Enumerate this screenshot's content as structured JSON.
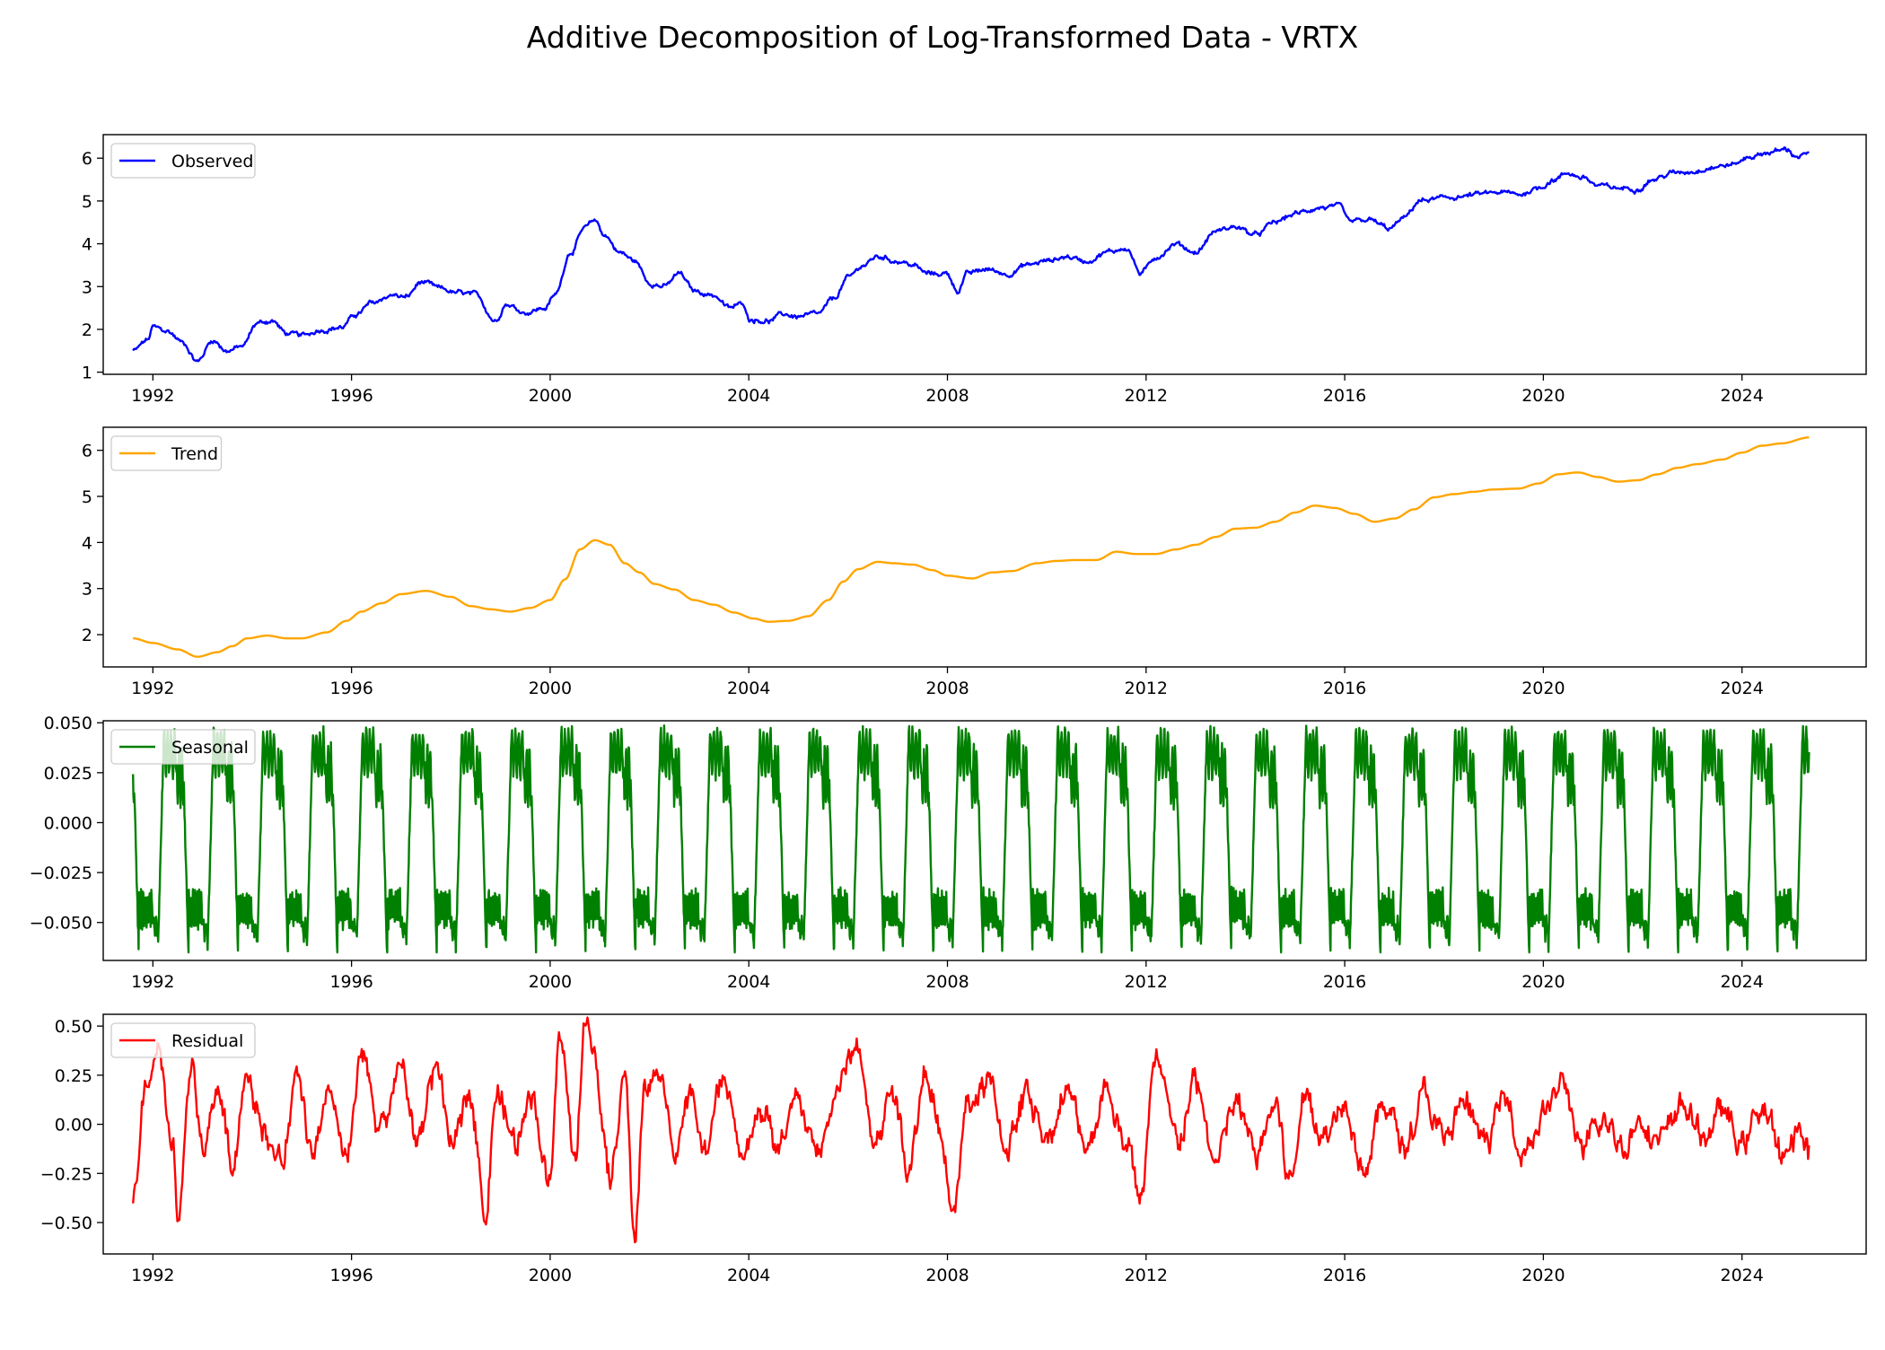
{
  "title": "Additive Decomposition of Log-Transformed Data - VRTX",
  "chart_data": [
    {
      "type": "line",
      "series": [
        {
          "name": "Observed",
          "color": "#0000ff"
        }
      ],
      "legend": "upper left",
      "xlim": [
        "1991-01",
        "2026-06"
      ],
      "ylim": [
        0.95,
        6.55
      ],
      "xticks": [
        "1992",
        "1996",
        "2000",
        "2004",
        "2008",
        "2012",
        "2016",
        "2020",
        "2024"
      ],
      "yticks": [
        "1",
        "2",
        "3",
        "4",
        "5",
        "6"
      ],
      "ytick_values": [
        1,
        2,
        3,
        4,
        5,
        6
      ],
      "anchors": [
        [
          1991.6,
          1.5
        ],
        [
          1991.9,
          1.75
        ],
        [
          1992.0,
          2.05
        ],
        [
          1992.3,
          1.95
        ],
        [
          1992.6,
          1.7
        ],
        [
          1992.9,
          1.25
        ],
        [
          1993.2,
          1.75
        ],
        [
          1993.5,
          1.5
        ],
        [
          1993.8,
          1.6
        ],
        [
          1994.1,
          2.15
        ],
        [
          1994.4,
          2.2
        ],
        [
          1994.7,
          1.9
        ],
        [
          1995.0,
          1.85
        ],
        [
          1995.4,
          2.0
        ],
        [
          1995.8,
          2.05
        ],
        [
          1996.1,
          2.35
        ],
        [
          1996.4,
          2.6
        ],
        [
          1996.8,
          2.8
        ],
        [
          1997.1,
          2.75
        ],
        [
          1997.4,
          3.1
        ],
        [
          1997.8,
          2.95
        ],
        [
          1998.1,
          2.85
        ],
        [
          1998.5,
          2.8
        ],
        [
          1998.9,
          2.2
        ],
        [
          1999.1,
          2.6
        ],
        [
          1999.5,
          2.4
        ],
        [
          1999.9,
          2.5
        ],
        [
          2000.1,
          2.8
        ],
        [
          2000.4,
          3.8
        ],
        [
          2000.7,
          4.35
        ],
        [
          2000.9,
          4.55
        ],
        [
          2001.1,
          4.2
        ],
        [
          2001.4,
          3.8
        ],
        [
          2001.7,
          3.6
        ],
        [
          2002.0,
          3.1
        ],
        [
          2002.3,
          3.0
        ],
        [
          2002.6,
          3.3
        ],
        [
          2002.9,
          2.9
        ],
        [
          2003.3,
          2.8
        ],
        [
          2003.6,
          2.5
        ],
        [
          2003.9,
          2.6
        ],
        [
          2004.0,
          2.25
        ],
        [
          2004.4,
          2.2
        ],
        [
          2004.7,
          2.35
        ],
        [
          2005.0,
          2.3
        ],
        [
          2005.4,
          2.35
        ],
        [
          2005.7,
          2.7
        ],
        [
          2006.0,
          3.2
        ],
        [
          2006.3,
          3.5
        ],
        [
          2006.6,
          3.7
        ],
        [
          2007.0,
          3.6
        ],
        [
          2007.3,
          3.5
        ],
        [
          2007.6,
          3.3
        ],
        [
          2008.0,
          3.3
        ],
        [
          2008.2,
          2.9
        ],
        [
          2008.4,
          3.3
        ],
        [
          2008.8,
          3.4
        ],
        [
          2009.2,
          3.3
        ],
        [
          2009.6,
          3.5
        ],
        [
          2010.0,
          3.6
        ],
        [
          2010.4,
          3.7
        ],
        [
          2010.8,
          3.6
        ],
        [
          2011.2,
          3.8
        ],
        [
          2011.6,
          3.9
        ],
        [
          2011.9,
          3.3
        ],
        [
          2012.2,
          3.7
        ],
        [
          2012.6,
          4.0
        ],
        [
          2013.0,
          3.8
        ],
        [
          2013.4,
          4.3
        ],
        [
          2013.8,
          4.4
        ],
        [
          2014.2,
          4.2
        ],
        [
          2014.6,
          4.5
        ],
        [
          2015.0,
          4.7
        ],
        [
          2015.5,
          4.85
        ],
        [
          2015.9,
          4.85
        ],
        [
          2016.1,
          4.5
        ],
        [
          2016.5,
          4.55
        ],
        [
          2016.9,
          4.35
        ],
        [
          2017.2,
          4.6
        ],
        [
          2017.5,
          5.0
        ],
        [
          2017.9,
          5.05
        ],
        [
          2018.3,
          5.1
        ],
        [
          2018.7,
          5.15
        ],
        [
          2019.1,
          5.2
        ],
        [
          2019.5,
          5.15
        ],
        [
          2019.9,
          5.3
        ],
        [
          2020.2,
          5.5
        ],
        [
          2020.5,
          5.65
        ],
        [
          2020.8,
          5.55
        ],
        [
          2021.1,
          5.35
        ],
        [
          2021.5,
          5.3
        ],
        [
          2021.9,
          5.3
        ],
        [
          2022.2,
          5.5
        ],
        [
          2022.6,
          5.65
        ],
        [
          2023.0,
          5.7
        ],
        [
          2023.4,
          5.8
        ],
        [
          2023.8,
          5.85
        ],
        [
          2024.2,
          6.05
        ],
        [
          2024.6,
          6.15
        ],
        [
          2024.9,
          6.2
        ],
        [
          2025.1,
          6.05
        ],
        [
          2025.35,
          6.1
        ]
      ],
      "noise": 0.07
    },
    {
      "type": "line",
      "series": [
        {
          "name": "Trend",
          "color": "#ffa500"
        }
      ],
      "legend": "upper left",
      "xlim": [
        "1991-01",
        "2026-06"
      ],
      "ylim": [
        1.3,
        6.5
      ],
      "xticks": [
        "1992",
        "1996",
        "2000",
        "2004",
        "2008",
        "2012",
        "2016",
        "2020",
        "2024"
      ],
      "yticks": [
        "2",
        "3",
        "4",
        "5",
        "6"
      ],
      "ytick_values": [
        2,
        3,
        4,
        5,
        6
      ],
      "anchors": [
        [
          1991.6,
          1.92
        ],
        [
          1992.0,
          1.82
        ],
        [
          1992.5,
          1.68
        ],
        [
          1992.9,
          1.52
        ],
        [
          1993.3,
          1.62
        ],
        [
          1993.6,
          1.75
        ],
        [
          1993.9,
          1.92
        ],
        [
          1994.3,
          1.98
        ],
        [
          1994.7,
          1.92
        ],
        [
          1995.0,
          1.92
        ],
        [
          1995.5,
          2.05
        ],
        [
          1995.9,
          2.3
        ],
        [
          1996.2,
          2.5
        ],
        [
          1996.6,
          2.68
        ],
        [
          1997.0,
          2.88
        ],
        [
          1997.5,
          2.95
        ],
        [
          1998.0,
          2.82
        ],
        [
          1998.4,
          2.62
        ],
        [
          1998.8,
          2.55
        ],
        [
          1999.2,
          2.5
        ],
        [
          1999.6,
          2.58
        ],
        [
          2000.0,
          2.75
        ],
        [
          2000.3,
          3.2
        ],
        [
          2000.6,
          3.85
        ],
        [
          2000.9,
          4.05
        ],
        [
          2001.2,
          3.95
        ],
        [
          2001.5,
          3.55
        ],
        [
          2001.8,
          3.35
        ],
        [
          2002.1,
          3.1
        ],
        [
          2002.5,
          2.98
        ],
        [
          2002.9,
          2.75
        ],
        [
          2003.3,
          2.65
        ],
        [
          2003.7,
          2.48
        ],
        [
          2004.1,
          2.35
        ],
        [
          2004.4,
          2.28
        ],
        [
          2004.8,
          2.3
        ],
        [
          2005.2,
          2.4
        ],
        [
          2005.6,
          2.75
        ],
        [
          2005.9,
          3.15
        ],
        [
          2006.2,
          3.42
        ],
        [
          2006.6,
          3.58
        ],
        [
          2006.9,
          3.55
        ],
        [
          2007.3,
          3.52
        ],
        [
          2007.7,
          3.4
        ],
        [
          2008.0,
          3.28
        ],
        [
          2008.5,
          3.22
        ],
        [
          2008.9,
          3.35
        ],
        [
          2009.3,
          3.38
        ],
        [
          2009.8,
          3.55
        ],
        [
          2010.2,
          3.6
        ],
        [
          2010.6,
          3.62
        ],
        [
          2011.0,
          3.62
        ],
        [
          2011.4,
          3.8
        ],
        [
          2011.8,
          3.75
        ],
        [
          2012.2,
          3.75
        ],
        [
          2012.6,
          3.85
        ],
        [
          2013.0,
          3.95
        ],
        [
          2013.4,
          4.12
        ],
        [
          2013.8,
          4.3
        ],
        [
          2014.2,
          4.32
        ],
        [
          2014.6,
          4.45
        ],
        [
          2015.0,
          4.65
        ],
        [
          2015.4,
          4.8
        ],
        [
          2015.8,
          4.75
        ],
        [
          2016.2,
          4.62
        ],
        [
          2016.6,
          4.45
        ],
        [
          2017.0,
          4.52
        ],
        [
          2017.4,
          4.72
        ],
        [
          2017.8,
          4.98
        ],
        [
          2018.2,
          5.05
        ],
        [
          2018.6,
          5.1
        ],
        [
          2019.0,
          5.15
        ],
        [
          2019.5,
          5.17
        ],
        [
          2019.9,
          5.28
        ],
        [
          2020.3,
          5.48
        ],
        [
          2020.7,
          5.52
        ],
        [
          2021.1,
          5.42
        ],
        [
          2021.5,
          5.32
        ],
        [
          2021.9,
          5.35
        ],
        [
          2022.3,
          5.48
        ],
        [
          2022.7,
          5.62
        ],
        [
          2023.1,
          5.7
        ],
        [
          2023.6,
          5.8
        ],
        [
          2024.0,
          5.95
        ],
        [
          2024.4,
          6.1
        ],
        [
          2024.8,
          6.15
        ],
        [
          2025.35,
          6.28
        ]
      ],
      "noise": 0
    },
    {
      "type": "line",
      "series": [
        {
          "name": "Seasonal",
          "color": "#008000"
        }
      ],
      "legend": "upper left",
      "xlim": [
        "1991-01",
        "2026-06"
      ],
      "ylim": [
        -0.069,
        0.051
      ],
      "xticks": [
        "1992",
        "1996",
        "2000",
        "2004",
        "2008",
        "2012",
        "2016",
        "2020",
        "2024"
      ],
      "yticks": [
        "0.050",
        "0.025",
        "0.000",
        "−0.025",
        "−0.050"
      ],
      "ytick_values": [
        0.05,
        0.025,
        0.0,
        -0.025,
        -0.05
      ],
      "period_years": 1,
      "range": [
        -0.065,
        0.049
      ]
    },
    {
      "type": "line",
      "series": [
        {
          "name": "Residual",
          "color": "#ff0000"
        }
      ],
      "legend": "upper left",
      "xlim": [
        "1991-01",
        "2026-06"
      ],
      "ylim": [
        -0.66,
        0.56
      ],
      "xticks": [
        "1992",
        "1996",
        "2000",
        "2004",
        "2008",
        "2012",
        "2016",
        "2020",
        "2024"
      ],
      "yticks": [
        "0.50",
        "0.25",
        "0.00",
        "−0.25",
        "−0.50"
      ],
      "ytick_values": [
        0.5,
        0.25,
        0.0,
        -0.25,
        -0.5
      ],
      "anchors": [
        [
          1991.6,
          -0.37
        ],
        [
          1991.9,
          0.25
        ],
        [
          1992.1,
          0.3
        ],
        [
          1992.4,
          -0.1
        ],
        [
          1992.5,
          -0.45
        ],
        [
          1992.8,
          0.3
        ],
        [
          1993.0,
          -0.15
        ],
        [
          1993.3,
          0.2
        ],
        [
          1993.6,
          -0.2
        ],
        [
          1993.9,
          0.3
        ],
        [
          1994.2,
          0.0
        ],
        [
          1994.6,
          -0.2
        ],
        [
          1994.9,
          0.2
        ],
        [
          1995.2,
          -0.15
        ],
        [
          1995.6,
          0.1
        ],
        [
          1995.9,
          -0.2
        ],
        [
          1996.2,
          0.3
        ],
        [
          1996.6,
          0.0
        ],
        [
          1997.0,
          0.3
        ],
        [
          1997.3,
          -0.1
        ],
        [
          1997.7,
          0.3
        ],
        [
          1998.0,
          -0.15
        ],
        [
          1998.4,
          0.2
        ],
        [
          1998.7,
          -0.45
        ],
        [
          1998.9,
          0.15
        ],
        [
          1999.3,
          -0.1
        ],
        [
          1999.6,
          0.2
        ],
        [
          2000.0,
          -0.3
        ],
        [
          2000.2,
          0.45
        ],
        [
          2000.5,
          -0.2
        ],
        [
          2000.7,
          0.5
        ],
        [
          2000.9,
          0.35
        ],
        [
          2001.2,
          -0.3
        ],
        [
          2001.5,
          0.25
        ],
        [
          2001.7,
          -0.58
        ],
        [
          2001.9,
          0.2
        ],
        [
          2002.2,
          0.25
        ],
        [
          2002.5,
          -0.1
        ],
        [
          2002.8,
          0.15
        ],
        [
          2003.1,
          -0.15
        ],
        [
          2003.5,
          0.2
        ],
        [
          2003.9,
          -0.2
        ],
        [
          2004.2,
          0.1
        ],
        [
          2004.6,
          -0.1
        ],
        [
          2005.0,
          0.1
        ],
        [
          2005.4,
          -0.15
        ],
        [
          2005.8,
          0.2
        ],
        [
          2006.2,
          0.4
        ],
        [
          2006.5,
          -0.1
        ],
        [
          2006.9,
          0.15
        ],
        [
          2007.2,
          -0.2
        ],
        [
          2007.6,
          0.3
        ],
        [
          2007.9,
          -0.15
        ],
        [
          2008.1,
          -0.5
        ],
        [
          2008.4,
          0.1
        ],
        [
          2008.8,
          0.2
        ],
        [
          2009.2,
          -0.1
        ],
        [
          2009.6,
          0.15
        ],
        [
          2010.0,
          -0.05
        ],
        [
          2010.4,
          0.15
        ],
        [
          2010.8,
          -0.1
        ],
        [
          2011.2,
          0.2
        ],
        [
          2011.6,
          -0.1
        ],
        [
          2011.9,
          -0.35
        ],
        [
          2012.2,
          0.3
        ],
        [
          2012.6,
          -0.1
        ],
        [
          2013.0,
          0.2
        ],
        [
          2013.4,
          -0.2
        ],
        [
          2013.8,
          0.1
        ],
        [
          2014.2,
          -0.15
        ],
        [
          2014.6,
          0.1
        ],
        [
          2014.9,
          -0.3
        ],
        [
          2015.2,
          0.15
        ],
        [
          2015.6,
          -0.05
        ],
        [
          2016.0,
          0.15
        ],
        [
          2016.4,
          -0.2
        ],
        [
          2016.8,
          0.1
        ],
        [
          2017.2,
          -0.1
        ],
        [
          2017.6,
          0.15
        ],
        [
          2018.0,
          -0.1
        ],
        [
          2018.4,
          0.1
        ],
        [
          2018.8,
          -0.1
        ],
        [
          2019.2,
          0.1
        ],
        [
          2019.6,
          -0.1
        ],
        [
          2020.0,
          0.05
        ],
        [
          2020.4,
          0.2
        ],
        [
          2020.8,
          -0.15
        ],
        [
          2021.2,
          0.0
        ],
        [
          2021.6,
          -0.1
        ],
        [
          2022.0,
          0.05
        ],
        [
          2022.4,
          -0.1
        ],
        [
          2022.8,
          0.1
        ],
        [
          2023.2,
          -0.05
        ],
        [
          2023.6,
          0.05
        ],
        [
          2024.0,
          -0.1
        ],
        [
          2024.4,
          0.1
        ],
        [
          2024.8,
          -0.2
        ],
        [
          2025.1,
          0.0
        ],
        [
          2025.35,
          -0.17
        ]
      ],
      "noise": 0.09
    }
  ]
}
